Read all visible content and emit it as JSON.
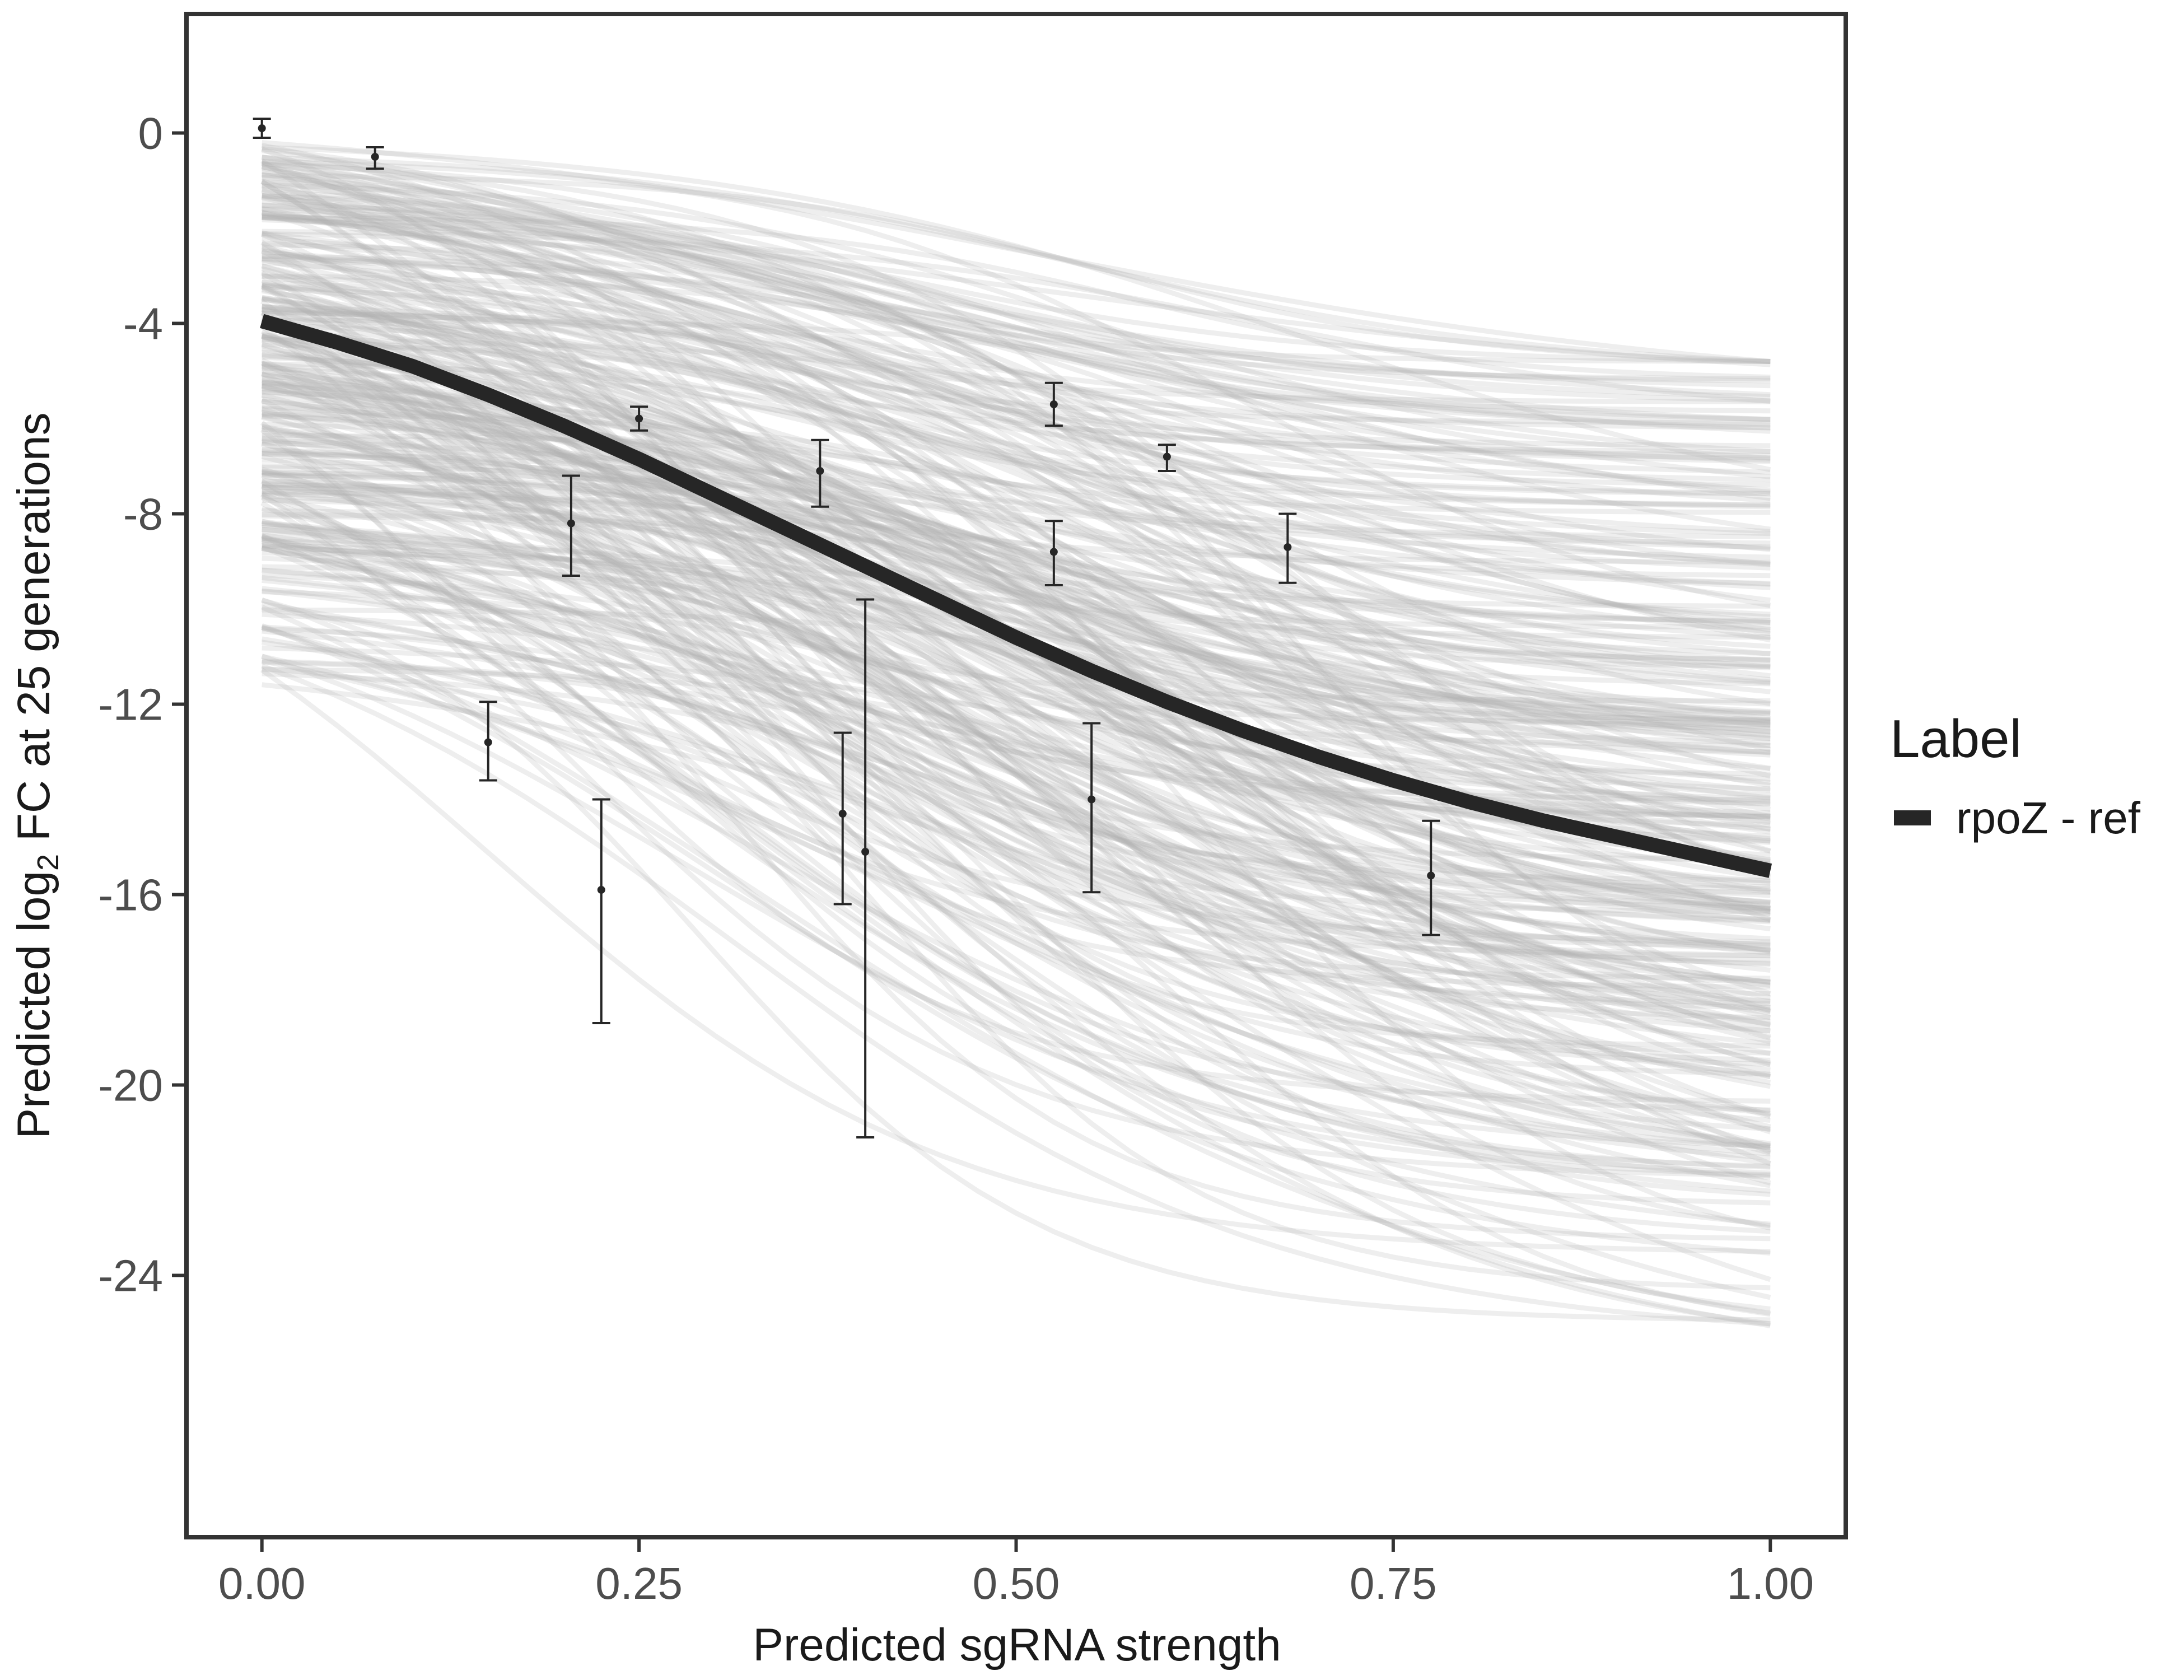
{
  "chart_data": {
    "type": "line",
    "xlabel": "Predicted sgRNA strength",
    "ylabel": {
      "prefix": "Predicted  log",
      "subscript": "2",
      "suffix": " FC at 25 generations"
    },
    "xlim": [
      -0.05,
      1.05
    ],
    "ylim": [
      -29.5,
      2.5
    ],
    "x_ticks": [
      0.0,
      0.25,
      0.5,
      0.75,
      1.0
    ],
    "x_tick_labels": [
      "0.00",
      "0.25",
      "0.50",
      "0.75",
      "1.00"
    ],
    "y_ticks": [
      0,
      -4,
      -8,
      -12,
      -16,
      -20,
      -24
    ],
    "y_tick_labels": [
      "0",
      "-4",
      "-8",
      "-12",
      "-16",
      "-20",
      "-24"
    ],
    "grid": false,
    "legend": {
      "title": "Label",
      "position": "right",
      "entries": [
        {
          "label": "rpoZ - ref",
          "color": "#262626"
        }
      ]
    },
    "series": [
      {
        "name": "rpoZ - ref",
        "kind": "fit",
        "color": "#262626",
        "x": [
          0.0,
          0.05,
          0.1,
          0.15,
          0.2,
          0.25,
          0.3,
          0.35,
          0.4,
          0.45,
          0.5,
          0.55,
          0.6,
          0.65,
          0.7,
          0.75,
          0.8,
          0.85,
          0.9,
          0.95,
          1.0
        ],
        "y": [
          -3.95,
          -4.4,
          -4.9,
          -5.5,
          -6.15,
          -6.85,
          -7.6,
          -8.35,
          -9.1,
          -9.85,
          -10.6,
          -11.3,
          -11.95,
          -12.55,
          -13.1,
          -13.6,
          -14.05,
          -14.45,
          -14.8,
          -15.15,
          -15.5
        ]
      }
    ],
    "posterior_band": {
      "description_color": "#bdbdbd",
      "n_draws": 320,
      "start_y_range": [
        -11.6,
        -0.2
      ],
      "end_y_range": [
        -25.3,
        -4.8
      ]
    },
    "points": {
      "color": "#262626",
      "x": [
        0.0,
        0.075,
        0.15,
        0.205,
        0.225,
        0.25,
        0.37,
        0.385,
        0.4,
        0.525,
        0.525,
        0.55,
        0.6,
        0.68,
        0.775
      ],
      "y": [
        0.1,
        -0.5,
        -12.8,
        -8.2,
        -15.9,
        -6.0,
        -7.1,
        -14.3,
        -15.1,
        -5.7,
        -8.8,
        -14.0,
        -6.8,
        -8.7,
        -15.6
      ],
      "y_low": [
        -0.1,
        -0.75,
        -13.6,
        -9.3,
        -18.7,
        -6.25,
        -7.85,
        -16.2,
        -21.1,
        -6.15,
        -9.5,
        -15.95,
        -7.1,
        -9.45,
        -16.85
      ],
      "y_high": [
        0.3,
        -0.3,
        -11.95,
        -7.2,
        -14.0,
        -5.75,
        -6.45,
        -12.6,
        -9.8,
        -5.25,
        -8.15,
        -12.4,
        -6.55,
        -8.0,
        -14.45
      ]
    }
  }
}
